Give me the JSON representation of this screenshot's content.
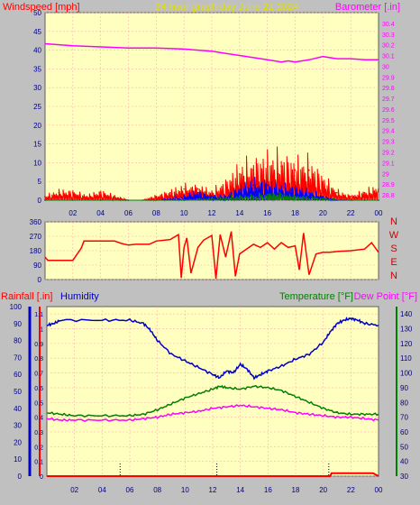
{
  "header": {
    "title": "24 hour graph day   June 21 2024",
    "left_label": "Windspeed [mph]",
    "right_label": "Barometer [.in]"
  },
  "colors": {
    "background": "#c0c0c0",
    "plot_bg": "#ffffc0",
    "grid": "#ffb0b0",
    "wind": "#ff0000",
    "gust": "#0000ff",
    "wind_avg": "#008000",
    "barometer": "#ff00ff",
    "humidity": "#0000cc",
    "temperature": "#008000",
    "dew_point": "#ff00ff",
    "rain": "#ff0000",
    "title": "#e0e000"
  },
  "chart_data": [
    {
      "type": "line",
      "name": "wind-barometer",
      "x_ticks": [
        "02",
        "04",
        "06",
        "08",
        "10",
        "12",
        "14",
        "16",
        "18",
        "20",
        "22",
        "00"
      ],
      "left_axis": {
        "label": "Windspeed [mph]",
        "ticks": [
          0,
          5,
          10,
          15,
          20,
          25,
          30,
          35,
          40,
          45,
          50
        ],
        "ylim": [
          0,
          50
        ]
      },
      "right_axis": {
        "label": "Barometer [.in]",
        "ticks": [
          "28.8",
          "28.9",
          "29",
          "29.1",
          "29.2",
          "29.3",
          "29.4",
          "29.5",
          "29.6",
          "29.7",
          "29.8",
          "29.9",
          "30",
          "30.1",
          "30.2",
          "30.3",
          "30.4"
        ],
        "ylim": [
          28.75,
          30.5
        ]
      },
      "series": [
        {
          "role": "barometer",
          "axis": "right",
          "x": [
            0,
            2,
            4,
            6,
            8,
            10,
            11,
            12,
            13,
            14,
            15,
            16,
            17,
            17.5,
            18,
            19,
            20,
            21,
            22,
            23,
            24
          ],
          "y": [
            30.21,
            30.19,
            30.18,
            30.17,
            30.17,
            30.16,
            30.15,
            30.14,
            30.12,
            30.1,
            30.08,
            30.06,
            30.04,
            30.05,
            30.04,
            30.06,
            30.09,
            30.07,
            30.07,
            30.06,
            30.06
          ]
        },
        {
          "role": "wind",
          "axis": "left",
          "x": [
            0,
            1,
            2,
            3,
            4,
            5,
            6,
            7,
            8,
            9,
            10,
            11,
            12,
            13,
            14,
            15,
            16,
            17,
            18,
            19,
            20,
            21,
            22,
            23,
            24
          ],
          "y": [
            1,
            2,
            2,
            1,
            2,
            1,
            0,
            0,
            1,
            2,
            3,
            3,
            2,
            4,
            7,
            8,
            9,
            9,
            8,
            8,
            5,
            2,
            1,
            2,
            3
          ]
        },
        {
          "role": "gust",
          "axis": "left",
          "x": [
            0,
            2,
            4,
            6,
            8,
            10,
            11,
            12,
            13,
            14,
            15,
            16,
            17,
            18,
            19,
            20,
            21,
            22,
            23,
            24
          ],
          "y": [
            0,
            0,
            0,
            0,
            0,
            1,
            2,
            1,
            1,
            3,
            4,
            4,
            3,
            3,
            2,
            1,
            0,
            0,
            0,
            0
          ]
        },
        {
          "role": "wind_avg",
          "axis": "left",
          "x": [
            0,
            4,
            8,
            10,
            12,
            14,
            16,
            17,
            18,
            20,
            22,
            24
          ],
          "y": [
            0,
            0,
            0,
            0,
            0.5,
            1,
            1.5,
            1.5,
            1,
            0.5,
            0,
            0
          ]
        }
      ]
    },
    {
      "type": "line",
      "name": "wind-direction",
      "left_axis": {
        "ticks": [
          0,
          90,
          180,
          270,
          360
        ],
        "ylim": [
          0,
          360
        ]
      },
      "right_axis": {
        "ticks": [
          "N",
          "W",
          "S",
          "E",
          "N"
        ]
      },
      "series": [
        {
          "role": "direction",
          "x": [
            0,
            0.2,
            2,
            2.6,
            2.8,
            5,
            5.5,
            6,
            6.5,
            7.5,
            8,
            9,
            9.6,
            9.8,
            10,
            10.2,
            10.5,
            11,
            11.4,
            12,
            12.3,
            12.6,
            13,
            13.4,
            13.7,
            14,
            14.5,
            15,
            15.5,
            16,
            16.5,
            17,
            17.5,
            18,
            18.3,
            18.6,
            19,
            19.5,
            20,
            20.5,
            21,
            22,
            23,
            23.5,
            24
          ],
          "y": [
            140,
            120,
            120,
            195,
            240,
            240,
            225,
            215,
            220,
            220,
            240,
            250,
            280,
            10,
            200,
            260,
            40,
            200,
            245,
            275,
            5,
            280,
            140,
            300,
            20,
            160,
            190,
            220,
            200,
            230,
            190,
            230,
            200,
            210,
            60,
            290,
            30,
            160,
            170,
            170,
            175,
            180,
            190,
            230,
            170
          ]
        }
      ]
    },
    {
      "type": "line",
      "name": "humidity-temperature",
      "left_label": "Rainfall [.in]",
      "left_label2": "Humidity",
      "right_label": "Temperature [°F]",
      "right_label2": "Dew Point [°F]",
      "humidity_axis": {
        "ticks": [
          0,
          10,
          20,
          30,
          40,
          50,
          60,
          70,
          80,
          90,
          100
        ],
        "ylim": [
          0,
          100
        ]
      },
      "rain_axis": {
        "ticks": [
          "0",
          "0.1",
          "0.2",
          "0.3",
          "0.4",
          "0.5",
          "0.6",
          "0.7",
          "0.8",
          "0.9",
          "1",
          "1.1"
        ],
        "ylim": [
          0,
          1.15
        ]
      },
      "temp_axis": {
        "ticks": [
          30,
          40,
          50,
          60,
          70,
          80,
          90,
          100,
          110,
          120,
          130,
          140
        ],
        "ylim": [
          30,
          145
        ]
      },
      "series": [
        {
          "role": "humidity",
          "axis": "humidity",
          "x": [
            0,
            0.5,
            1,
            4,
            6,
            7,
            7.5,
            8,
            9,
            10,
            11,
            12,
            12.5,
            13,
            13.5,
            14,
            14.5,
            15,
            15.5,
            16,
            17,
            18,
            19,
            20,
            20.5,
            21,
            21.5,
            22,
            22.5,
            23,
            24
          ],
          "y": [
            89,
            90,
            92,
            92,
            92,
            90,
            86,
            80,
            72,
            68,
            64,
            60,
            58,
            62,
            61,
            66,
            63,
            58,
            60,
            62,
            65,
            69,
            72,
            79,
            85,
            90,
            92,
            93,
            92,
            90,
            89
          ]
        },
        {
          "role": "temperature",
          "axis": "temp",
          "x": [
            0,
            1,
            2,
            4,
            6,
            7,
            8,
            9,
            10,
            11,
            12,
            12.5,
            13,
            14,
            15,
            16,
            17,
            18,
            19,
            20,
            21,
            22,
            23,
            24
          ],
          "y": [
            73,
            72,
            71,
            71,
            71,
            72,
            75,
            79,
            83,
            86,
            89,
            91,
            90,
            89,
            91,
            90,
            88,
            84,
            80,
            76,
            73,
            72,
            72,
            72
          ]
        },
        {
          "role": "dew_point",
          "axis": "temp",
          "x": [
            0,
            1,
            2,
            4,
            6,
            7,
            8,
            9,
            10,
            11,
            12,
            13,
            14,
            15,
            16,
            17,
            18,
            19,
            20,
            21,
            22,
            23,
            24
          ],
          "y": [
            69,
            68,
            68,
            68,
            68,
            69,
            70,
            72,
            73,
            74,
            76,
            77,
            78,
            77,
            76,
            75,
            73,
            72,
            71,
            70,
            70,
            69,
            68
          ]
        },
        {
          "role": "rain",
          "axis": "rain",
          "x": [
            0,
            20.5,
            20.6,
            23.6,
            24
          ],
          "y": [
            0,
            0,
            0.02,
            0.02,
            0
          ]
        }
      ]
    }
  ]
}
